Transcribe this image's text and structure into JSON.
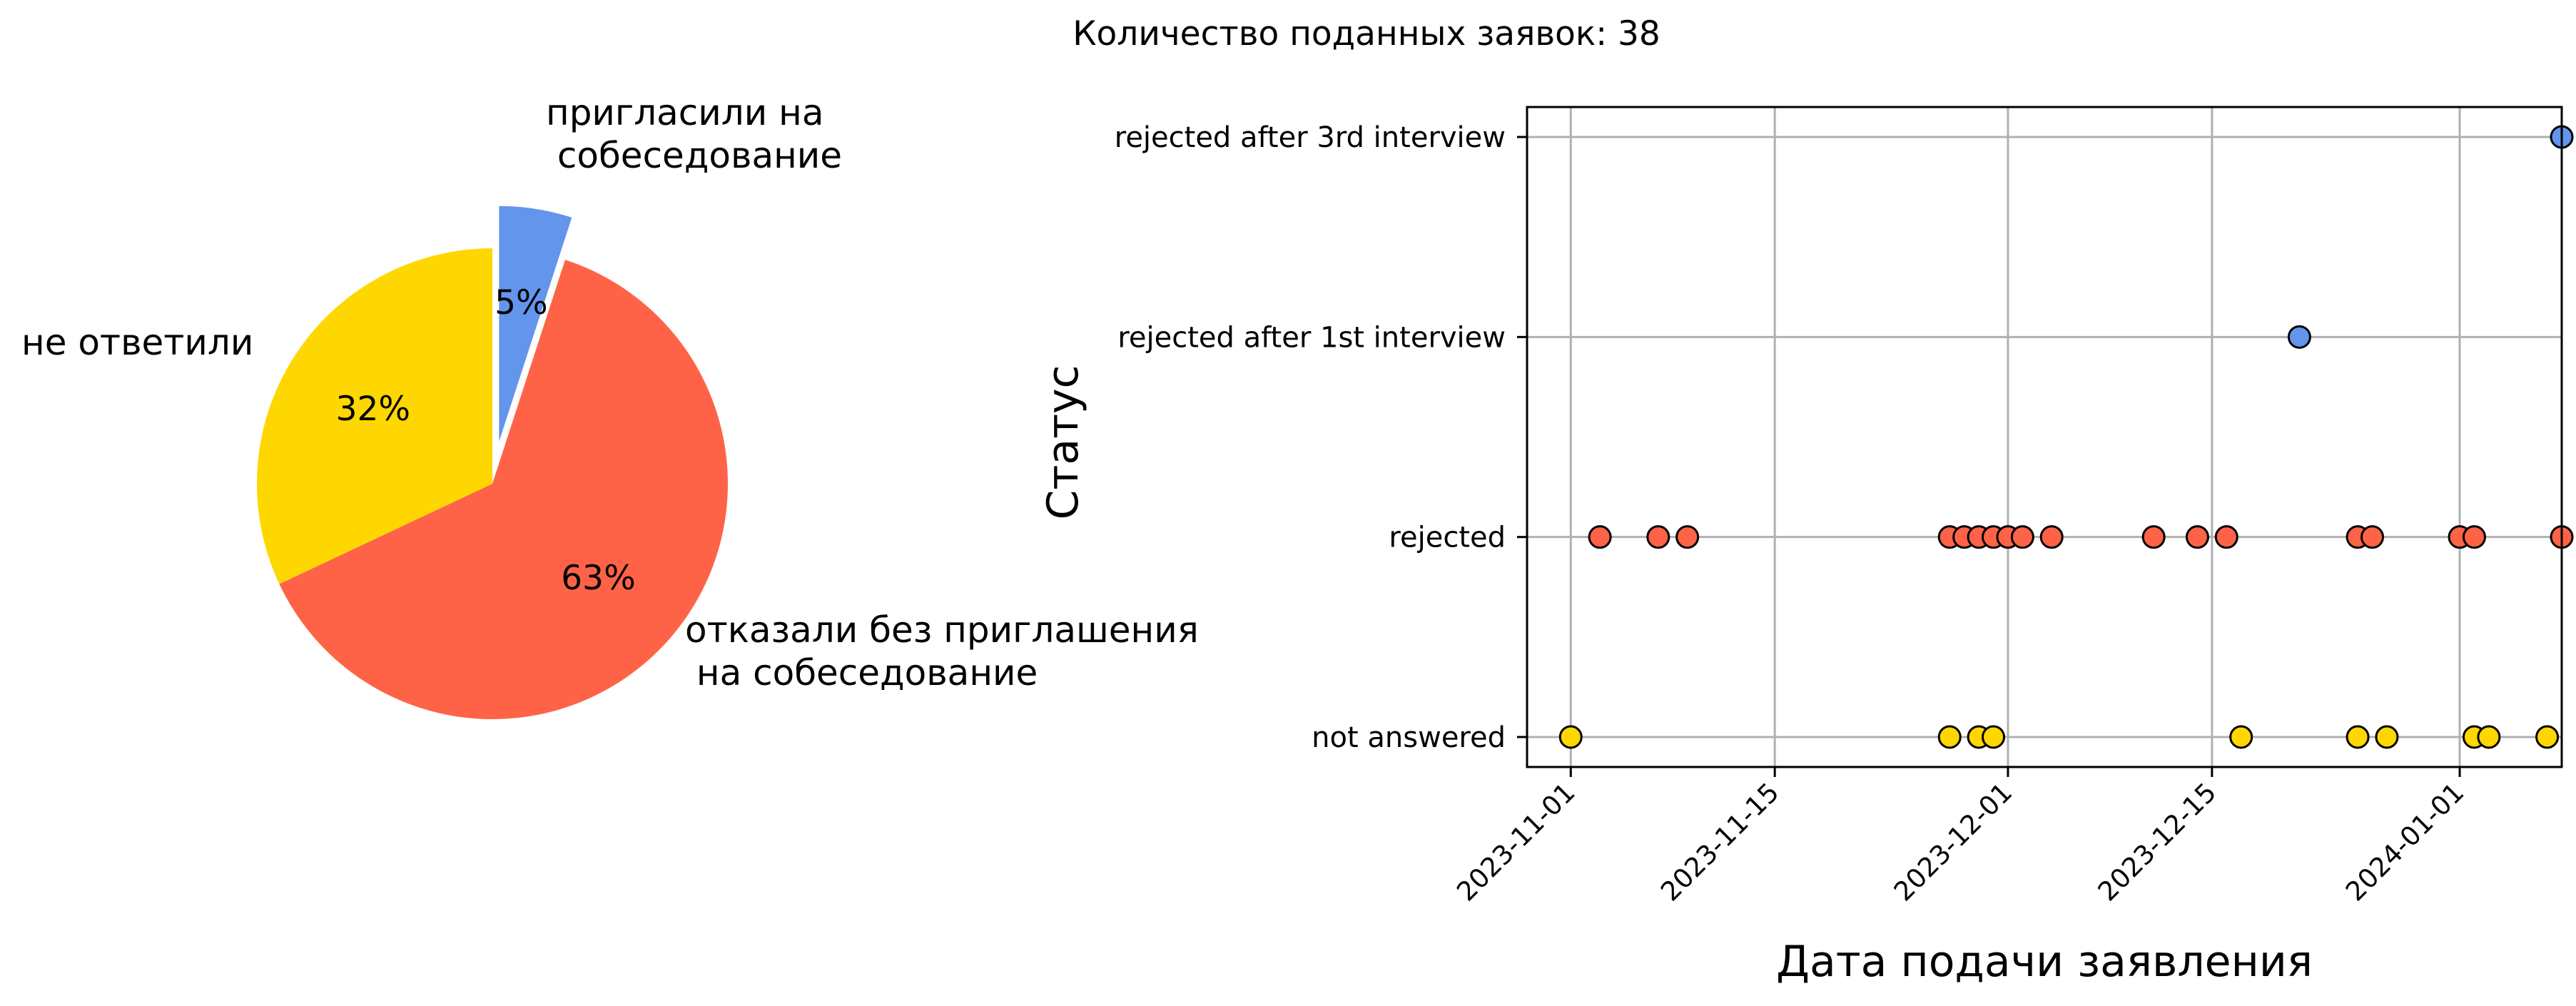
{
  "figure_title": "Количество поданных заявок: 38",
  "chart_data": [
    {
      "type": "pie",
      "values": [
        5,
        63,
        32
      ],
      "labels": [
        "пригласили на\n собеседование",
        "отказали без приглашения\n на собеседование",
        "не ответили"
      ],
      "pct_labels": [
        "5%",
        "63%",
        "32%"
      ],
      "colors": [
        "#6495ED",
        "#FF6347",
        "#FFD700"
      ],
      "exploded": "пригласили на\n собеседование",
      "start_direction": "top",
      "direction": "clockwise"
    },
    {
      "type": "scatter",
      "xlabel": "Дата подачи заявления",
      "ylabel": "Статус",
      "categories": [
        "not answered",
        "rejected",
        "rejected after 1st interview",
        "rejected after 3rd interview"
      ],
      "x_ticks": [
        "2023-11-01",
        "2023-11-15",
        "2023-12-01",
        "2023-12-15",
        "2024-01-01"
      ],
      "x_range": [
        "2023-10-29",
        "2024-01-08"
      ],
      "grid": true,
      "series": [
        {
          "category": "not answered",
          "color": "#FFD700",
          "x": [
            "2023-11-01",
            "2023-11-27",
            "2023-11-29",
            "2023-11-30",
            "2023-12-17",
            "2023-12-25",
            "2023-12-27",
            "2024-01-02",
            "2024-01-03",
            "2024-01-07"
          ]
        },
        {
          "category": "rejected",
          "color": "#FF6347",
          "x": [
            "2023-11-03",
            "2023-11-07",
            "2023-11-09",
            "2023-11-27",
            "2023-11-28",
            "2023-11-29",
            "2023-11-30",
            "2023-12-01",
            "2023-12-02",
            "2023-12-04",
            "2023-12-11",
            "2023-12-14",
            "2023-12-16",
            "2023-12-25",
            "2023-12-26",
            "2024-01-01",
            "2024-01-02",
            "2024-01-08"
          ]
        },
        {
          "category": "rejected after 1st interview",
          "color": "#6495ED",
          "x": [
            "2023-12-21"
          ]
        },
        {
          "category": "rejected after 3rd interview",
          "color": "#6495ED",
          "x": [
            "2024-01-08"
          ]
        }
      ]
    }
  ]
}
